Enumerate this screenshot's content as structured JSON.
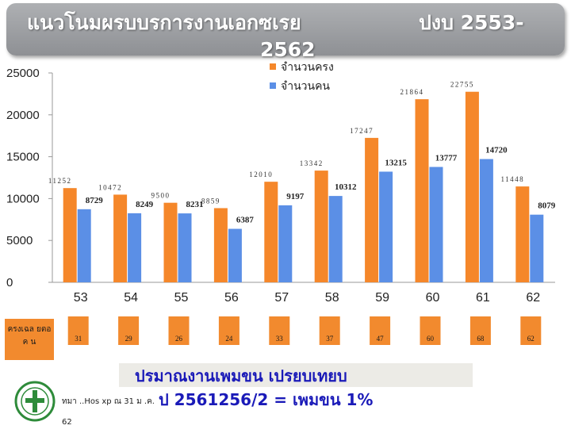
{
  "header": {
    "title_line1": "แนวโนมผรบบรการงานเอกซเรย",
    "title_line2": "2562",
    "title_right": "ปงบ  2553-"
  },
  "chart_data": {
    "type": "bar",
    "categories": [
      "53",
      "54",
      "55",
      "56",
      "57",
      "58",
      "59",
      "60",
      "61",
      "62"
    ],
    "series": [
      {
        "name": "จำนวนครง",
        "color": "#f5872a",
        "values": [
          11252,
          10472,
          9500,
          8859,
          12010,
          13342,
          17247,
          21864,
          22755,
          11448
        ],
        "labels": [
          "11252",
          "10472",
          "9500",
          "8859",
          "12010",
          "13342",
          "17247",
          "21864",
          "22755",
          "11448"
        ]
      },
      {
        "name": "จำนวนคน",
        "color": "#5b8fe6",
        "values": [
          8729,
          8249,
          8231,
          6387,
          9197,
          10312,
          13215,
          13777,
          14720,
          8079
        ],
        "labels": [
          "8729",
          "8249",
          "8231",
          "6387",
          "9197",
          "10312",
          "13215",
          "13777",
          "14720",
          "8079"
        ]
      }
    ],
    "ylim": [
      0,
      25000
    ],
    "yticks": [
      "0",
      "5000",
      "10000",
      "15000",
      "20000",
      "25000"
    ],
    "grid": false,
    "legend_position": "top-right"
  },
  "ratio_row": {
    "label": "ครงเฉล ยตอ ค น",
    "values": [
      "31",
      "29",
      "26",
      "24",
      "33",
      "37",
      "47",
      "60",
      "68",
      "62"
    ]
  },
  "note": {
    "line1": "ปรมาณงานเพมขน           เปรยบเทยบ",
    "line2": "ป  2561256/2 = เพมขน          1%"
  },
  "source": "ทมา   ..Hos xp ณ 31 ม .ค. 62"
}
